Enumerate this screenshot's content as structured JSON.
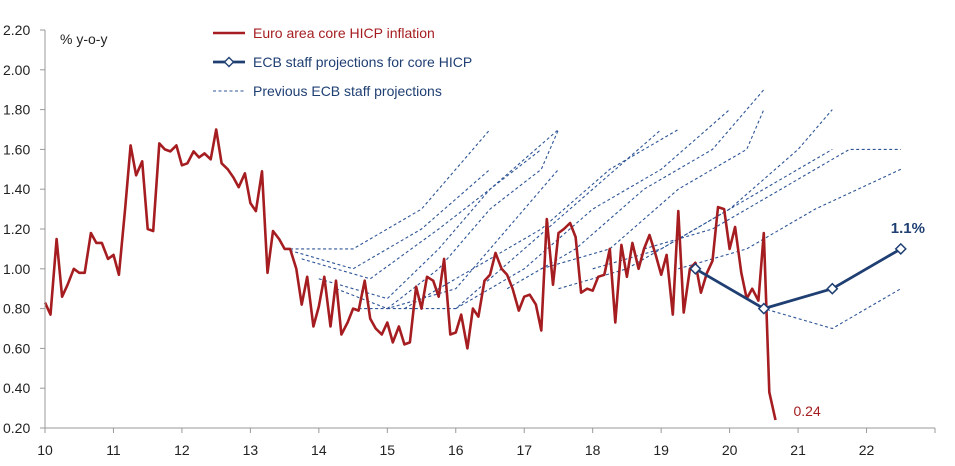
{
  "chart_data": {
    "type": "line",
    "title": "",
    "ylabel": "% y-o-y",
    "xlabel": "",
    "ylim": [
      0.2,
      2.2
    ],
    "xlim": [
      10,
      23
    ],
    "y_ticks": [
      "0.20",
      "0.40",
      "0.60",
      "0.80",
      "1.00",
      "1.20",
      "1.40",
      "1.60",
      "1.80",
      "2.00",
      "2.20"
    ],
    "y_tick_values": [
      0.2,
      0.4,
      0.6,
      0.8,
      1.0,
      1.2,
      1.4,
      1.6,
      1.8,
      2.0,
      2.2
    ],
    "x_ticks": [
      "10",
      "11",
      "12",
      "13",
      "14",
      "15",
      "16",
      "17",
      "18",
      "19",
      "20",
      "21",
      "22"
    ],
    "x_tick_values": [
      10,
      11,
      12,
      13,
      14,
      15,
      16,
      17,
      18,
      19,
      20,
      21,
      22
    ],
    "legend": {
      "placement": "top-center",
      "entries": [
        {
          "label": "Euro area core HICP inflation",
          "style": "solid-red"
        },
        {
          "label": "ECB staff projections for core HICP",
          "style": "solid-blue-diamond"
        },
        {
          "label": "Previous ECB staff projections",
          "style": "dashed-blue"
        }
      ]
    },
    "colors": {
      "actual": "#a51d20",
      "projection": "#1f3f73",
      "previous": "#2e5597",
      "axis": "#999999"
    },
    "series": [
      {
        "name": "Euro area core HICP inflation",
        "points": [
          [
            10.0,
            0.83
          ],
          [
            10.08,
            0.77
          ],
          [
            10.17,
            1.15
          ],
          [
            10.25,
            0.86
          ],
          [
            10.33,
            0.92
          ],
          [
            10.42,
            1.0
          ],
          [
            10.5,
            0.98
          ],
          [
            10.58,
            0.98
          ],
          [
            10.67,
            1.18
          ],
          [
            10.75,
            1.13
          ],
          [
            10.83,
            1.13
          ],
          [
            10.92,
            1.05
          ],
          [
            11.0,
            1.07
          ],
          [
            11.08,
            0.97
          ],
          [
            11.17,
            1.3
          ],
          [
            11.25,
            1.62
          ],
          [
            11.33,
            1.47
          ],
          [
            11.42,
            1.54
          ],
          [
            11.5,
            1.2
          ],
          [
            11.58,
            1.19
          ],
          [
            11.67,
            1.63
          ],
          [
            11.75,
            1.6
          ],
          [
            11.83,
            1.59
          ],
          [
            11.92,
            1.62
          ],
          [
            12.0,
            1.52
          ],
          [
            12.08,
            1.53
          ],
          [
            12.17,
            1.59
          ],
          [
            12.25,
            1.56
          ],
          [
            12.33,
            1.58
          ],
          [
            12.42,
            1.55
          ],
          [
            12.5,
            1.7
          ],
          [
            12.58,
            1.53
          ],
          [
            12.67,
            1.5
          ],
          [
            12.75,
            1.46
          ],
          [
            12.83,
            1.41
          ],
          [
            12.92,
            1.48
          ],
          [
            13.0,
            1.33
          ],
          [
            13.08,
            1.29
          ],
          [
            13.17,
            1.49
          ],
          [
            13.25,
            0.98
          ],
          [
            13.33,
            1.19
          ],
          [
            13.42,
            1.15
          ],
          [
            13.5,
            1.1
          ],
          [
            13.58,
            1.1
          ],
          [
            13.67,
            1.0
          ],
          [
            13.75,
            0.82
          ],
          [
            13.83,
            0.96
          ],
          [
            13.92,
            0.71
          ],
          [
            14.0,
            0.81
          ],
          [
            14.08,
            0.96
          ],
          [
            14.17,
            0.71
          ],
          [
            14.25,
            0.94
          ],
          [
            14.33,
            0.67
          ],
          [
            14.42,
            0.73
          ],
          [
            14.5,
            0.8
          ],
          [
            14.58,
            0.79
          ],
          [
            14.67,
            0.94
          ],
          [
            14.75,
            0.75
          ],
          [
            14.83,
            0.7
          ],
          [
            14.92,
            0.67
          ],
          [
            15.0,
            0.73
          ],
          [
            15.08,
            0.63
          ],
          [
            15.17,
            0.71
          ],
          [
            15.25,
            0.62
          ],
          [
            15.33,
            0.63
          ],
          [
            15.42,
            0.91
          ],
          [
            15.5,
            0.8
          ],
          [
            15.58,
            0.96
          ],
          [
            15.67,
            0.94
          ],
          [
            15.75,
            0.86
          ],
          [
            15.83,
            1.05
          ],
          [
            15.92,
            0.67
          ],
          [
            16.0,
            0.68
          ],
          [
            16.08,
            0.77
          ],
          [
            16.17,
            0.6
          ],
          [
            16.25,
            0.8
          ],
          [
            16.33,
            0.76
          ],
          [
            16.42,
            0.94
          ],
          [
            16.5,
            0.97
          ],
          [
            16.58,
            1.08
          ],
          [
            16.67,
            1.0
          ],
          [
            16.75,
            0.97
          ],
          [
            16.83,
            0.9
          ],
          [
            16.92,
            0.79
          ],
          [
            17.0,
            0.86
          ],
          [
            17.08,
            0.87
          ],
          [
            17.17,
            0.82
          ],
          [
            17.25,
            0.69
          ],
          [
            17.33,
            1.25
          ],
          [
            17.42,
            0.92
          ],
          [
            17.5,
            1.18
          ],
          [
            17.58,
            1.2
          ],
          [
            17.67,
            1.23
          ],
          [
            17.75,
            1.16
          ],
          [
            17.83,
            0.88
          ],
          [
            17.92,
            0.9
          ],
          [
            18.0,
            0.89
          ],
          [
            18.08,
            0.96
          ],
          [
            18.17,
            0.97
          ],
          [
            18.25,
            1.1
          ],
          [
            18.33,
            0.73
          ],
          [
            18.42,
            1.12
          ],
          [
            18.5,
            0.96
          ],
          [
            18.58,
            1.13
          ],
          [
            18.67,
            1.0
          ],
          [
            18.75,
            1.1
          ],
          [
            18.83,
            1.17
          ],
          [
            18.92,
            1.07
          ],
          [
            19.0,
            0.97
          ],
          [
            19.08,
            1.07
          ],
          [
            19.17,
            0.77
          ],
          [
            19.25,
            1.29
          ],
          [
            19.33,
            0.78
          ],
          [
            19.42,
            1.0
          ],
          [
            19.5,
            1.03
          ],
          [
            19.58,
            0.88
          ],
          [
            19.67,
            0.98
          ],
          [
            19.75,
            1.04
          ],
          [
            19.83,
            1.31
          ],
          [
            19.92,
            1.3
          ],
          [
            20.0,
            1.1
          ],
          [
            20.08,
            1.21
          ],
          [
            20.17,
            0.98
          ],
          [
            20.25,
            0.85
          ],
          [
            20.33,
            0.9
          ],
          [
            20.42,
            0.84
          ],
          [
            20.5,
            1.18
          ],
          [
            20.58,
            0.38
          ],
          [
            20.67,
            0.24
          ]
        ]
      },
      {
        "name": "ECB staff projections for core HICP",
        "points": [
          [
            19.5,
            1.0
          ],
          [
            20.5,
            0.8
          ],
          [
            21.5,
            0.9
          ],
          [
            22.5,
            1.1
          ]
        ]
      }
    ],
    "previous_projections": [
      [
        [
          13.5,
          1.1
        ],
        [
          14.5,
          1.1
        ],
        [
          15.5,
          1.3
        ],
        [
          16.5,
          1.7
        ]
      ],
      [
        [
          13.5,
          1.1
        ],
        [
          14.5,
          1.0
        ],
        [
          15.5,
          1.2
        ],
        [
          16.5,
          1.5
        ]
      ],
      [
        [
          13.75,
          1.05
        ],
        [
          14.75,
          0.95
        ],
        [
          15.75,
          1.2
        ],
        [
          16.5,
          1.4
        ],
        [
          17.25,
          1.6
        ]
      ],
      [
        [
          14.0,
          0.95
        ],
        [
          15.0,
          0.85
        ],
        [
          15.75,
          1.1
        ],
        [
          16.5,
          1.4
        ],
        [
          17.5,
          1.7
        ]
      ],
      [
        [
          14.25,
          0.9
        ],
        [
          15.0,
          0.8
        ],
        [
          15.75,
          1.0
        ],
        [
          16.5,
          1.3
        ],
        [
          17.25,
          1.5
        ],
        [
          17.5,
          1.7
        ]
      ],
      [
        [
          14.5,
          0.8
        ],
        [
          15.0,
          0.8
        ],
        [
          16.0,
          0.9
        ],
        [
          17.5,
          1.5
        ]
      ],
      [
        [
          15.0,
          0.8
        ],
        [
          16.0,
          0.8
        ],
        [
          17.0,
          1.1
        ],
        [
          18.0,
          1.4
        ],
        [
          19.0,
          1.7
        ]
      ],
      [
        [
          15.25,
          0.8
        ],
        [
          16.25,
          1.0
        ],
        [
          17.25,
          1.2
        ],
        [
          18.25,
          1.5
        ],
        [
          19.25,
          1.7
        ]
      ],
      [
        [
          16.0,
          0.8
        ],
        [
          17.0,
          1.0
        ],
        [
          18.0,
          1.3
        ],
        [
          19.0,
          1.5
        ],
        [
          20.0,
          1.8
        ]
      ],
      [
        [
          16.75,
          0.9
        ],
        [
          17.75,
          1.1
        ],
        [
          18.75,
          1.4
        ],
        [
          19.75,
          1.6
        ],
        [
          20.5,
          1.9
        ]
      ],
      [
        [
          17.25,
          1.0
        ],
        [
          18.25,
          1.1
        ],
        [
          19.25,
          1.4
        ],
        [
          20.25,
          1.6
        ],
        [
          20.5,
          1.8
        ]
      ],
      [
        [
          17.5,
          0.9
        ],
        [
          18.5,
          1.0
        ],
        [
          19.5,
          1.2
        ],
        [
          20.5,
          1.4
        ],
        [
          21.5,
          1.6
        ]
      ],
      [
        [
          18.0,
          1.0
        ],
        [
          19.0,
          1.1
        ],
        [
          20.0,
          1.3
        ],
        [
          21.0,
          1.6
        ],
        [
          21.5,
          1.8
        ]
      ],
      [
        [
          18.75,
          1.1
        ],
        [
          19.75,
          1.2
        ],
        [
          20.75,
          1.4
        ],
        [
          21.75,
          1.6
        ],
        [
          22.5,
          1.6
        ]
      ],
      [
        [
          19.25,
          1.0
        ],
        [
          20.25,
          1.1
        ],
        [
          21.25,
          1.3
        ],
        [
          22.5,
          1.5
        ]
      ],
      [
        [
          19.5,
          1.0
        ],
        [
          20.5,
          0.8
        ],
        [
          21.5,
          0.7
        ],
        [
          22.5,
          0.9
        ]
      ]
    ],
    "annotations": [
      {
        "text": "0.24",
        "x": 20.67,
        "y": 0.24,
        "series": "actual"
      },
      {
        "text": "1.1%",
        "x": 22.5,
        "y": 1.1,
        "series": "projection"
      }
    ]
  }
}
